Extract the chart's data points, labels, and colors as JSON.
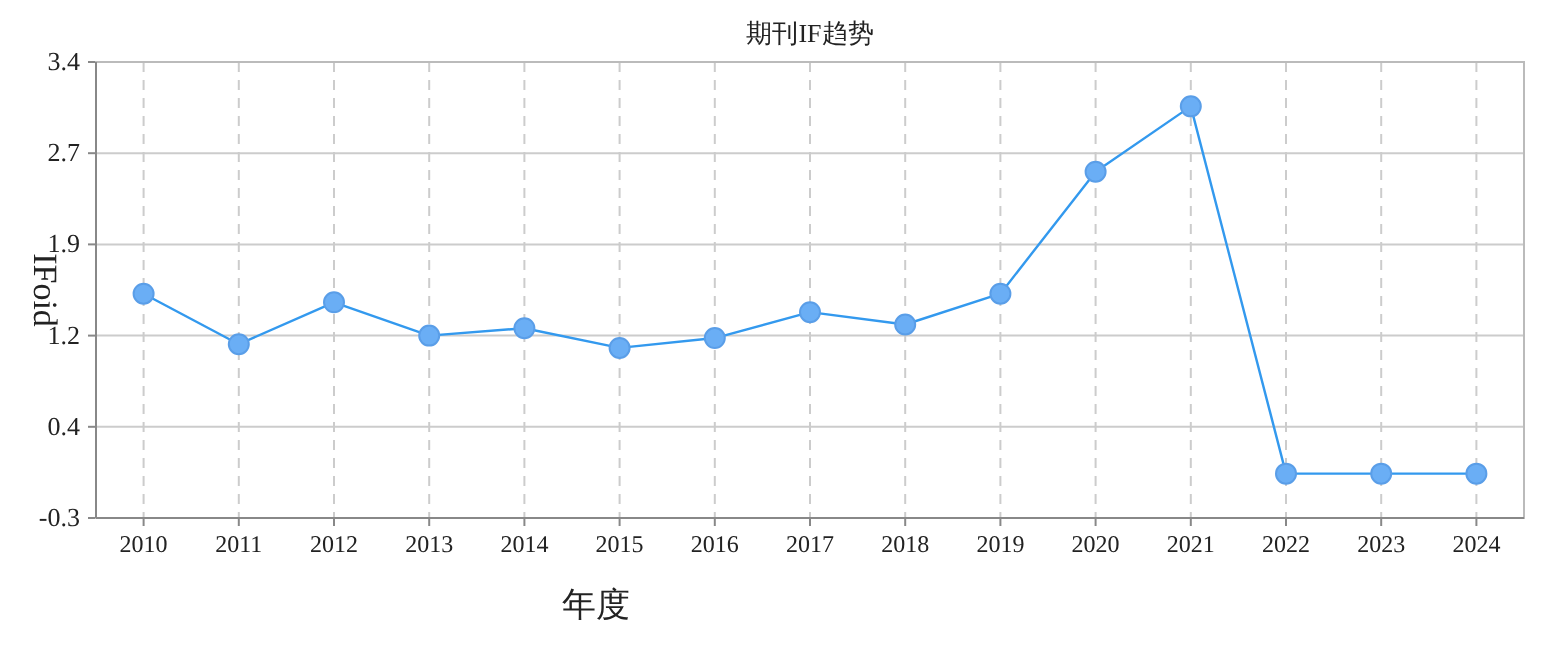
{
  "chart_data": {
    "type": "line",
    "title": "期刊IF趋势",
    "xlabel": "年度",
    "ylabel": "IFoid",
    "categories": [
      "2010",
      "2011",
      "2012",
      "2013",
      "2014",
      "2015",
      "2016",
      "2017",
      "2018",
      "2019",
      "2020",
      "2021",
      "2022",
      "2023",
      "2024"
    ],
    "series": [
      {
        "color": "#3399ee",
        "values": [
          1.52,
          1.11,
          1.45,
          1.18,
          1.24,
          1.08,
          1.16,
          1.37,
          1.27,
          1.52,
          2.51,
          3.04,
          0.06,
          0.06,
          0.06
        ]
      }
    ],
    "ylim": [
      -0.3,
      3.4
    ],
    "yticks": [
      {
        "value": -0.3,
        "label": "-0.3"
      },
      {
        "value": 0.44,
        "label": "0.4"
      },
      {
        "value": 1.18,
        "label": "1.2"
      },
      {
        "value": 1.92,
        "label": "1.9"
      },
      {
        "value": 2.66,
        "label": "2.7"
      },
      {
        "value": 3.4,
        "label": "3.4"
      }
    ],
    "grid": true,
    "marker": "circle",
    "line_style": "solid"
  }
}
